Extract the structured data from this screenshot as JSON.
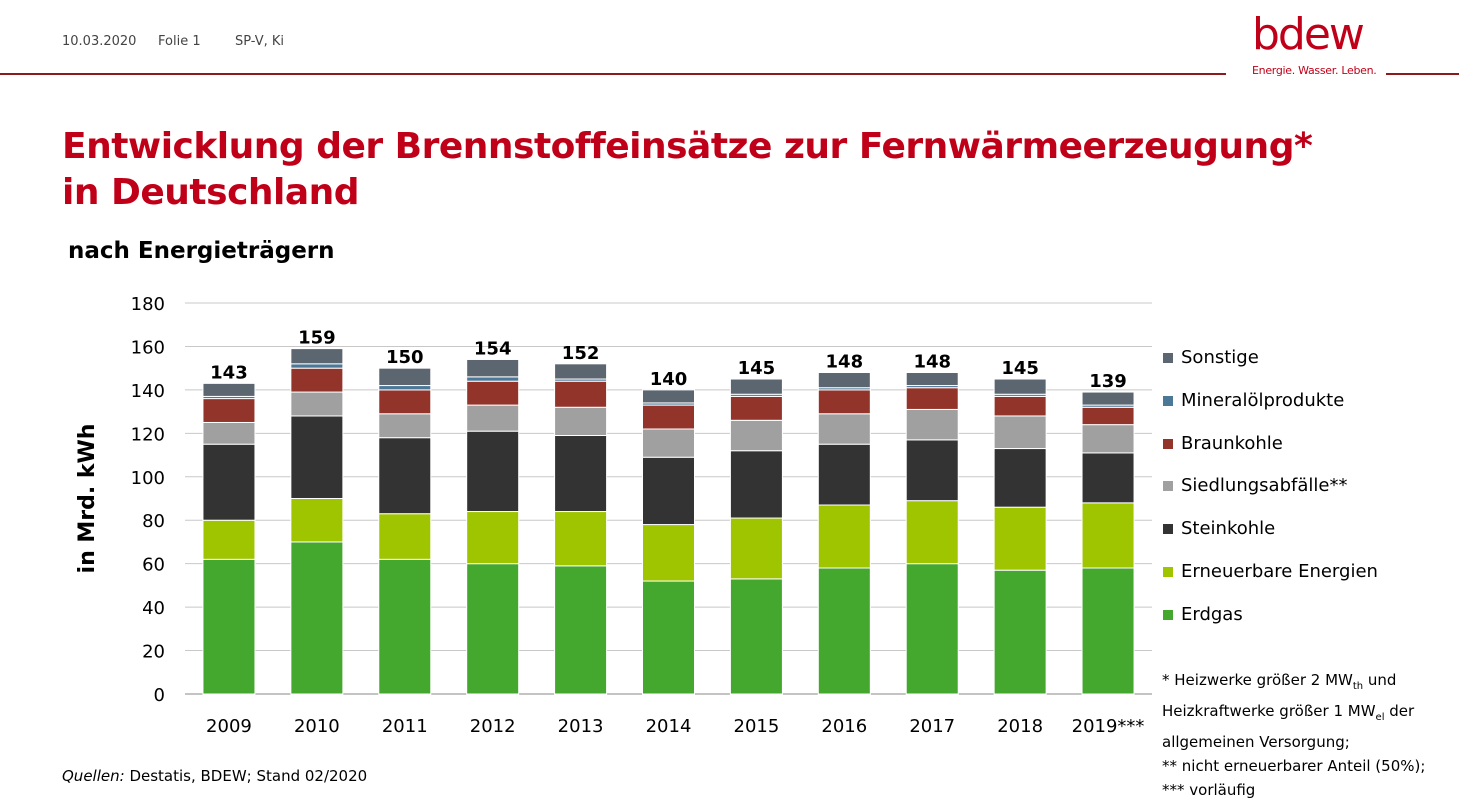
{
  "header": {
    "date": "10.03.2020",
    "slide": "Folie 1",
    "author": "SP-V, Ki"
  },
  "logo": {
    "word": "bdew",
    "tagline": "Energie. Wasser. Leben."
  },
  "title": {
    "line1": "Entwicklung der Brennstoffeinsätze zur Fernwärmeerzeugung*",
    "line2": "in Deutschland"
  },
  "subtitle": "nach Energieträgern",
  "colors": {
    "accent": "#c00018",
    "Erdgas": "#45a82e",
    "Erneuerbare Energien": "#9fc400",
    "Steinkohle": "#333333",
    "Siedlungsabfälle**": "#a0a0a0",
    "Braunkohle": "#93342a",
    "Mineralölprodukte": "#4b7896",
    "Sonstige": "#5b6670"
  },
  "chart_data": {
    "type": "bar",
    "stacked": true,
    "categories": [
      "2009",
      "2010",
      "2011",
      "2012",
      "2013",
      "2014",
      "2015",
      "2016",
      "2017",
      "2018",
      "2019***"
    ],
    "series": [
      {
        "name": "Erdgas",
        "values": [
          62,
          70,
          62,
          60,
          59,
          52,
          53,
          58,
          60,
          57,
          58
        ]
      },
      {
        "name": "Erneuerbare Energien",
        "values": [
          18,
          20,
          21,
          24,
          25,
          26,
          28,
          29,
          29,
          29,
          30
        ]
      },
      {
        "name": "Steinkohle",
        "values": [
          35,
          38,
          35,
          37,
          35,
          31,
          31,
          28,
          28,
          27,
          23
        ]
      },
      {
        "name": "Siedlungsabfälle**",
        "values": [
          10,
          11,
          11,
          12,
          13,
          13,
          14,
          14,
          14,
          15,
          13
        ]
      },
      {
        "name": "Braunkohle",
        "values": [
          11,
          11,
          11,
          11,
          12,
          11,
          11,
          11,
          10,
          9,
          8
        ]
      },
      {
        "name": "Mineralölprodukte",
        "values": [
          1,
          2,
          2,
          2,
          1,
          1,
          1,
          1,
          1,
          1,
          1
        ]
      },
      {
        "name": "Sonstige",
        "values": [
          6,
          7,
          8,
          8,
          7,
          6,
          7,
          7,
          6,
          7,
          6
        ]
      }
    ],
    "totals": [
      143,
      159,
      150,
      154,
      152,
      140,
      145,
      148,
      148,
      145,
      139
    ],
    "ylabel": "in Mrd. kWh",
    "ylim": [
      0,
      180
    ],
    "yticks": [
      0,
      20,
      40,
      60,
      80,
      100,
      120,
      140,
      160,
      180
    ],
    "grid": true,
    "legend_position": "right",
    "legend_order": [
      "Sonstige",
      "Mineralölprodukte",
      "Braunkohle",
      "Siedlungsabfälle**",
      "Steinkohle",
      "Erneuerbare Energien",
      "Erdgas"
    ]
  },
  "notes": {
    "line1_pre": "* Heizwerke größer 2 MW",
    "line1_sub": "th",
    "line1_post": " und",
    "line2_pre": "Heizkraftwerke größer 1 MW",
    "line2_sub": "el",
    "line2_post": " der",
    "line3": "allgemeinen Versorgung;",
    "line4": "** nicht erneuerbarer Anteil (50%);",
    "line5": "*** vorläufig"
  },
  "source": {
    "label": "Quellen:",
    "text": " Destatis, BDEW; Stand 02/2020"
  }
}
